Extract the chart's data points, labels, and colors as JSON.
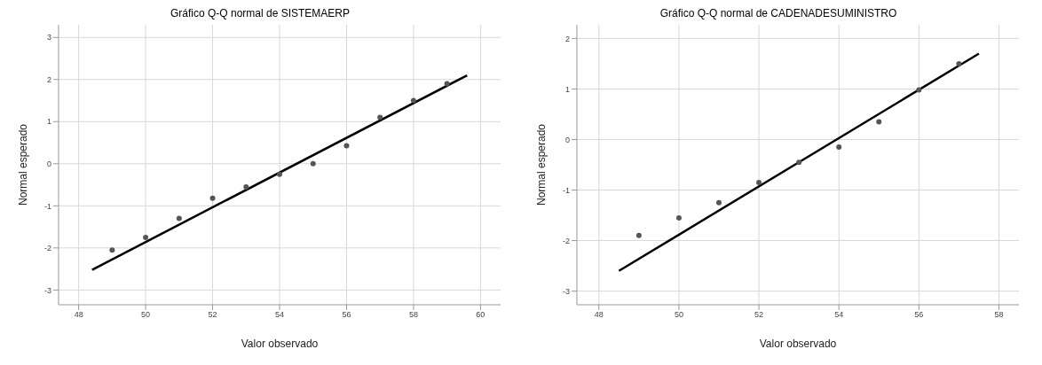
{
  "chart_data": [
    {
      "type": "scatter",
      "title": "Gráfico Q-Q normal de SISTEMAERP",
      "xlabel": "Valor observado",
      "ylabel": "Normal esperado",
      "xlim": [
        47.4,
        60.6
      ],
      "ylim": [
        -3.35,
        3.3
      ],
      "xticks": [
        48,
        50,
        52,
        54,
        56,
        58,
        60
      ],
      "yticks": [
        -3,
        -2,
        -1,
        0,
        1,
        2,
        3
      ],
      "grid": true,
      "series": [
        {
          "marker": "circle",
          "color": "#555555",
          "x": [
            49,
            50,
            51,
            52,
            53,
            54,
            55,
            56,
            57,
            58,
            59
          ],
          "values": [
            -2.05,
            -1.75,
            -1.3,
            -0.82,
            -0.55,
            -0.25,
            0,
            0.43,
            1.1,
            1.5,
            1.9
          ]
        },
        {
          "type": "line",
          "marker": "none",
          "color": "#000000",
          "x": [
            48.4,
            59.6
          ],
          "values": [
            -2.52,
            2.1
          ]
        }
      ]
    },
    {
      "type": "scatter",
      "title": "Gráfico Q-Q normal de CADENADESUMINISTRO",
      "xlabel": "Valor observado",
      "ylabel": "Normal esperado",
      "xlim": [
        47.45,
        58.5
      ],
      "ylim": [
        -3.27,
        2.27
      ],
      "xticks": [
        48,
        50,
        52,
        54,
        56,
        58
      ],
      "yticks": [
        -3,
        -2,
        -1,
        0,
        1,
        2
      ],
      "grid": true,
      "series": [
        {
          "marker": "circle",
          "color": "#555555",
          "x": [
            49,
            50,
            51,
            52,
            53,
            54,
            55,
            56,
            57
          ],
          "values": [
            -1.9,
            -1.55,
            -1.25,
            -0.85,
            -0.45,
            -0.15,
            0.35,
            0.98,
            1.5
          ]
        },
        {
          "type": "line",
          "marker": "none",
          "color": "#000000",
          "x": [
            48.5,
            57.5
          ],
          "values": [
            -2.6,
            1.7
          ]
        }
      ]
    }
  ]
}
